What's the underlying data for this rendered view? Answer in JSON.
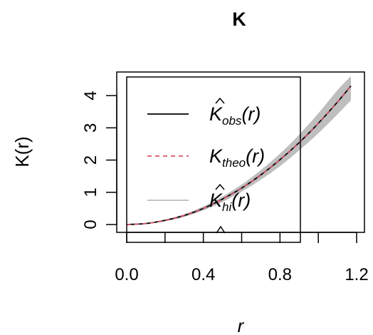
{
  "chart_data": {
    "type": "line",
    "title": "K",
    "xlabel": "r",
    "ylabel": "K(r)",
    "xlim": [
      0,
      1.2
    ],
    "ylim": [
      0,
      4.6
    ],
    "x_ticks": [
      "0.0",
      "0.4",
      "0.8",
      "1.2"
    ],
    "x_tick_values": [
      0,
      0.4,
      0.8,
      1.2
    ],
    "y_ticks": [
      "0",
      "1",
      "2",
      "3",
      "4"
    ],
    "y_tick_values": [
      0,
      1,
      2,
      3,
      4
    ],
    "grid": false,
    "legend_position": "top-left",
    "series": [
      {
        "name": "obs",
        "style": "solid",
        "color": "#000000",
        "x": [
          0,
          0.1,
          0.2,
          0.3,
          0.4,
          0.5,
          0.6,
          0.7,
          0.8,
          0.9,
          1.0,
          1.1,
          1.17
        ],
        "y": [
          0,
          0.03,
          0.13,
          0.28,
          0.5,
          0.79,
          1.13,
          1.54,
          2.01,
          2.54,
          3.14,
          3.8,
          4.3
        ]
      },
      {
        "name": "theo",
        "style": "dashed",
        "color": "#df536b",
        "x": [
          0,
          0.1,
          0.2,
          0.3,
          0.4,
          0.5,
          0.6,
          0.7,
          0.8,
          0.9,
          1.0,
          1.1,
          1.17
        ],
        "y": [
          0,
          0.031,
          0.126,
          0.283,
          0.503,
          0.785,
          1.131,
          1.539,
          2.011,
          2.545,
          3.142,
          3.801,
          4.3
        ]
      },
      {
        "name": "envelope",
        "style": "band",
        "color": "#bebebe",
        "x": [
          0,
          0.1,
          0.2,
          0.3,
          0.4,
          0.5,
          0.6,
          0.7,
          0.8,
          0.9,
          1.0,
          1.1,
          1.17
        ],
        "y_hi": [
          0,
          0.04,
          0.15,
          0.32,
          0.56,
          0.87,
          1.24,
          1.69,
          2.2,
          2.79,
          3.45,
          4.17,
          4.6
        ],
        "y_lo": [
          0,
          0.02,
          0.1,
          0.24,
          0.44,
          0.7,
          1.02,
          1.39,
          1.81,
          2.3,
          2.83,
          3.42,
          3.85
        ]
      }
    ],
    "legend": [
      {
        "key": "obs",
        "base": "K",
        "hat": true,
        "sub": "obs",
        "arg": "(r)",
        "color": "#000000",
        "style": "solid"
      },
      {
        "key": "theo",
        "base": "K",
        "hat": false,
        "sub": "theo",
        "arg": "(r)",
        "color": "#df536b",
        "style": "dashed"
      },
      {
        "key": "hi",
        "base": "K",
        "hat": true,
        "sub": "hi",
        "arg": "(r)",
        "color": "#bebebe",
        "style": "solid"
      }
    ]
  }
}
